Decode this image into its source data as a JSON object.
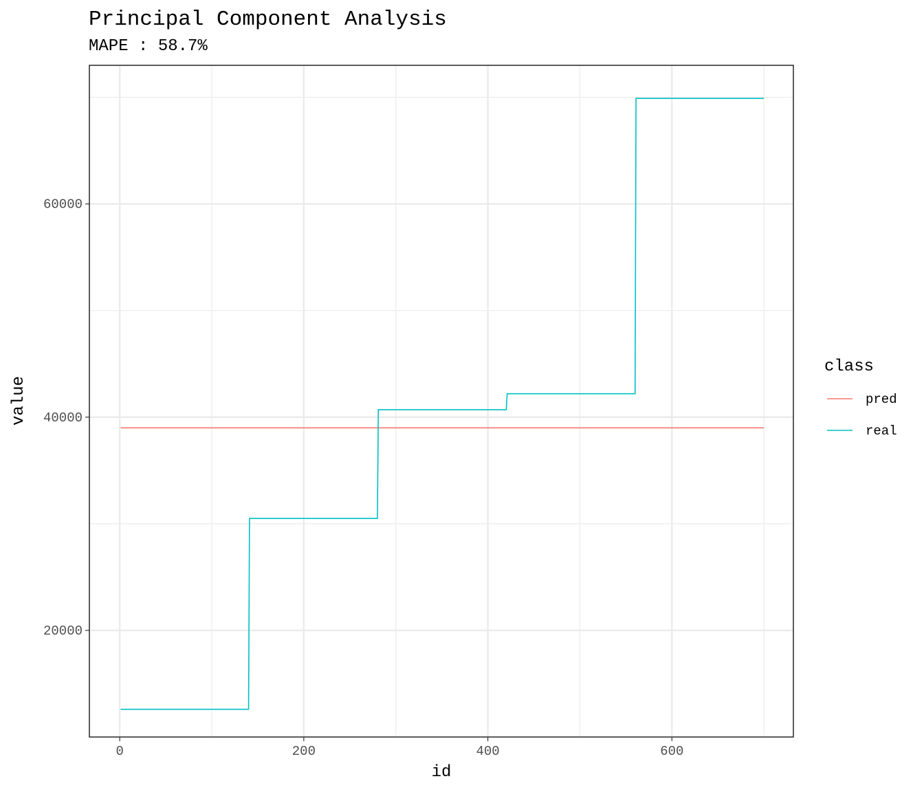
{
  "chart_data": {
    "type": "line",
    "title": "Principal Component Analysis",
    "subtitle": "MAPE : 58.7%",
    "xlabel": "id",
    "ylabel": "value",
    "xlim": [
      -33,
      732
    ],
    "ylim": [
      10000,
      73000
    ],
    "x_ticks": [
      0,
      200,
      400,
      600
    ],
    "x_minor_ticks": [
      100,
      300,
      500,
      700
    ],
    "y_ticks": [
      20000,
      40000,
      60000
    ],
    "y_minor_ticks": [
      30000,
      50000,
      70000
    ],
    "x_tick_labels": [
      "0",
      "200",
      "400",
      "600"
    ],
    "y_tick_labels": [
      "20000",
      "40000",
      "60000"
    ],
    "grid": true,
    "legend": {
      "title": "class",
      "position": "right",
      "entries": [
        "pred",
        "real"
      ]
    },
    "series": [
      {
        "name": "pred",
        "color": "#F8766D",
        "step": false,
        "points": [
          [
            1,
            39000
          ],
          [
            700,
            39000
          ]
        ]
      },
      {
        "name": "real",
        "color": "#00BFC4",
        "step": true,
        "points": [
          [
            1,
            12600
          ],
          [
            140,
            12600
          ],
          [
            141,
            30500
          ],
          [
            280,
            30500
          ],
          [
            281,
            40700
          ],
          [
            420,
            40700
          ],
          [
            421,
            42200
          ],
          [
            560,
            42200
          ],
          [
            561,
            69900
          ],
          [
            700,
            69900
          ]
        ]
      }
    ]
  }
}
